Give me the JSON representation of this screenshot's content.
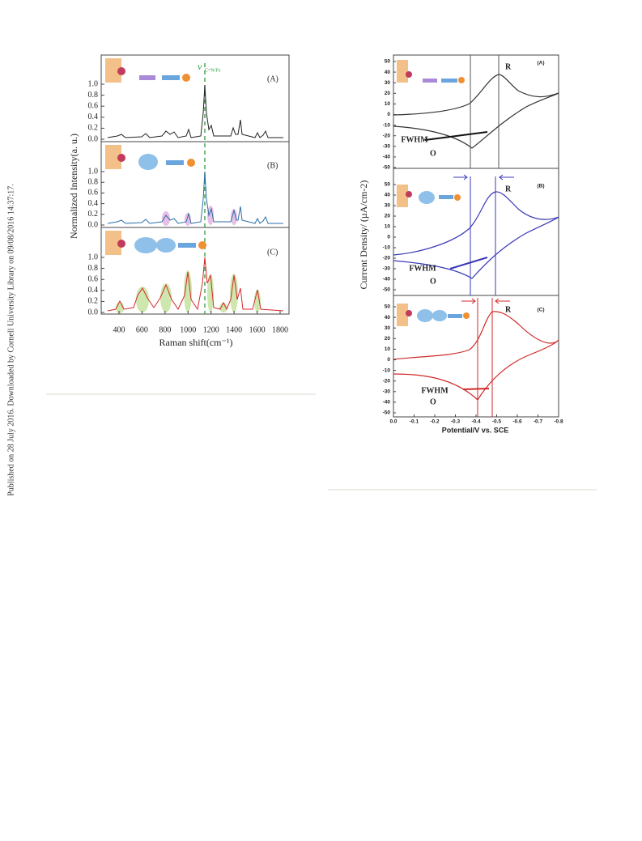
{
  "sidebar": "Published on 28 July 2016. Downloaded by Cornell University Library on 09/08/2016 14:37:17.",
  "figure_left": {
    "panels": [
      "(A)",
      "(B)",
      "(C)"
    ],
    "annotation": "ν",
    "annotation_sub": "C=N/Fe",
    "y_ticks": [
      "1.0",
      "0.8",
      "0.6",
      "0.4",
      "0.2",
      "0.0"
    ],
    "x_ticks": [
      "400",
      "600",
      "800",
      "1000",
      "1200",
      "1400",
      "1600",
      "1800"
    ],
    "x_label": "Raman shift(cm⁻¹)",
    "y_label": "Normalized Intensity(a. u.)"
  },
  "figure_right": {
    "panels": [
      "(A)",
      "(B)",
      "(C)"
    ],
    "peak_r": "R",
    "peak_o": "O",
    "fwhm": "FWHM",
    "y_ticks": [
      "50",
      "40",
      "30",
      "20",
      "10",
      "0",
      "-10",
      "-20",
      "-30",
      "-40",
      "-50"
    ],
    "x_ticks": [
      "0.0",
      "-0.1",
      "-0.2",
      "-0.3",
      "-0.4",
      "-0.5",
      "-0.6",
      "-0.7",
      "-0.8"
    ],
    "x_label": "Potential/V vs. SCE",
    "y_label": "Current Density/ (µA/cm-2)"
  }
}
